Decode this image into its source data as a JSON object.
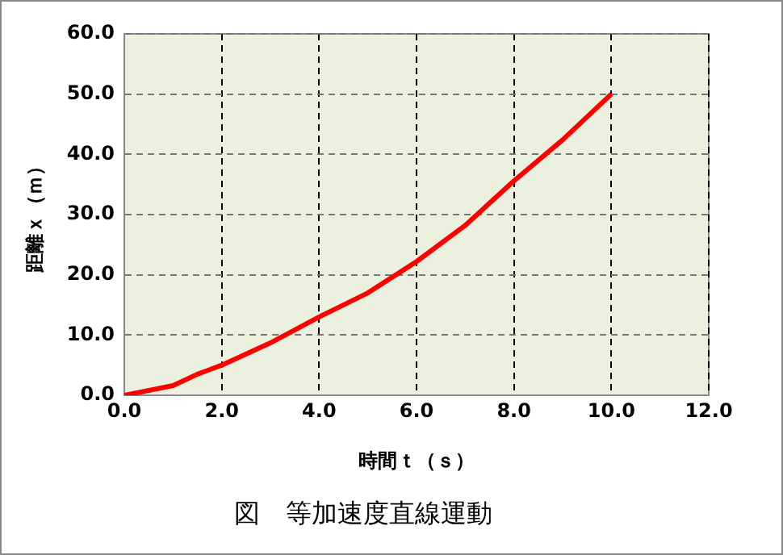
{
  "chart_data": {
    "type": "line",
    "title": "図　等加速度直線運動",
    "xlabel": "時間ｔ（ｓ）",
    "ylabel": "距離ｘ（ｍ）",
    "x": [
      0,
      1,
      1.5,
      2,
      3,
      4,
      5,
      6,
      7,
      7.5,
      8,
      9,
      10
    ],
    "series": [
      {
        "color": "#ff0000",
        "values": [
          0,
          1.6,
          3.5,
          5,
          8.7,
          13,
          17,
          22.2,
          28.2,
          31.9,
          35.6,
          42.4,
          50
        ]
      }
    ],
    "xlim": [
      0,
      12
    ],
    "xticks": [
      {
        "value": 0,
        "label": "0.0"
      },
      {
        "value": 2,
        "label": "2.0"
      },
      {
        "value": 4,
        "label": "4.0"
      },
      {
        "value": 6,
        "label": "6.0"
      },
      {
        "value": 8,
        "label": "8.0"
      },
      {
        "value": 10,
        "label": "10.0"
      },
      {
        "value": 12,
        "label": "12.0"
      }
    ],
    "ylim": [
      0,
      60
    ],
    "yticks": [
      {
        "value": 0,
        "label": "0.0"
      },
      {
        "value": 10,
        "label": "10.0"
      },
      {
        "value": 20,
        "label": "20.0"
      },
      {
        "value": 30,
        "label": "30.0"
      },
      {
        "value": 40,
        "label": "40.0"
      },
      {
        "value": 50,
        "label": "50.0"
      },
      {
        "value": 60,
        "label": "60.0"
      }
    ],
    "grid": true,
    "legend": false,
    "marker": "none",
    "line_style": "solid"
  }
}
